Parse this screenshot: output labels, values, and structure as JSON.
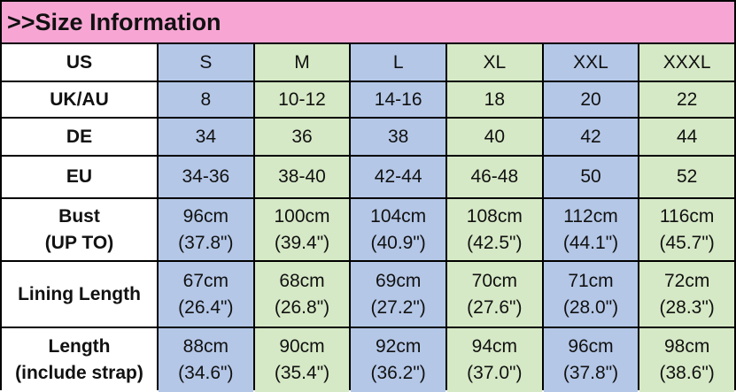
{
  "header": {
    "title": ">>Size Information"
  },
  "table": {
    "rows": [
      {
        "label": [
          "US"
        ],
        "cells": [
          [
            "S"
          ],
          [
            "M"
          ],
          [
            "L"
          ],
          [
            "XL"
          ],
          [
            "XXL"
          ],
          [
            "XXXL"
          ]
        ]
      },
      {
        "label": [
          "UK/AU"
        ],
        "cells": [
          [
            "8"
          ],
          [
            "10-12"
          ],
          [
            "14-16"
          ],
          [
            "18"
          ],
          [
            "20"
          ],
          [
            "22"
          ]
        ]
      },
      {
        "label": [
          "DE"
        ],
        "cells": [
          [
            "34"
          ],
          [
            "36"
          ],
          [
            "38"
          ],
          [
            "40"
          ],
          [
            "42"
          ],
          [
            "44"
          ]
        ]
      },
      {
        "label": [
          "EU"
        ],
        "cells": [
          [
            "34-36"
          ],
          [
            "38-40"
          ],
          [
            "42-44"
          ],
          [
            "46-48"
          ],
          [
            "50"
          ],
          [
            "52"
          ]
        ]
      },
      {
        "label": [
          "Bust",
          "(UP TO)"
        ],
        "cells": [
          [
            "96cm",
            "(37.8\")"
          ],
          [
            "100cm",
            "(39.4\")"
          ],
          [
            "104cm",
            "(40.9\")"
          ],
          [
            "108cm",
            "(42.5\")"
          ],
          [
            "112cm",
            "(44.1\")"
          ],
          [
            "116cm",
            "(45.7\")"
          ]
        ]
      },
      {
        "label": [
          "Lining Length"
        ],
        "cells": [
          [
            "67cm",
            "(26.4\")"
          ],
          [
            "68cm",
            "(26.8\")"
          ],
          [
            "69cm",
            "(27.2\")"
          ],
          [
            "70cm",
            "(27.6\")"
          ],
          [
            "71cm",
            "(28.0\")"
          ],
          [
            "72cm",
            "(28.3\")"
          ]
        ]
      },
      {
        "label": [
          "Length",
          "(include strap)"
        ],
        "cells": [
          [
            "88cm",
            "(34.6\")"
          ],
          [
            "90cm",
            "(35.4\")"
          ],
          [
            "92cm",
            "(36.2\")"
          ],
          [
            "94cm",
            "(37.0\")"
          ],
          [
            "96cm",
            "(37.8\")"
          ],
          [
            "98cm",
            "(38.6\")"
          ]
        ]
      }
    ]
  }
}
